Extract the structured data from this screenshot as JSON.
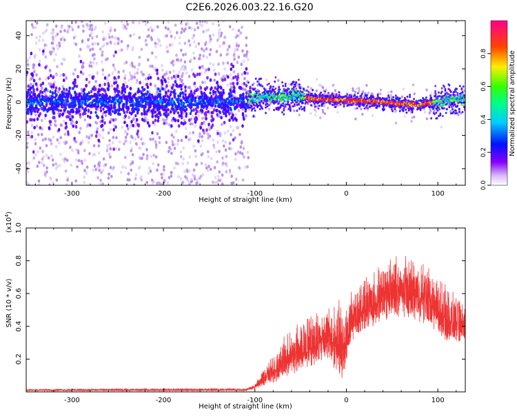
{
  "title": "C2E6.2026.003.22.16.G20",
  "chart_data": [
    {
      "type": "heatmap",
      "title": "C2E6.2026.003.22.16.G20",
      "xlabel": "Height of straight line (km)",
      "ylabel": "Frequency (Hz)",
      "xlim": [
        -350,
        130
      ],
      "ylim": [
        -50,
        49
      ],
      "xticks": [
        "-300",
        "-200",
        "-100",
        "0",
        "100"
      ],
      "yticks": [
        "-40",
        "-20",
        "0",
        "20",
        "40"
      ],
      "colorbar": {
        "label": "Normalized spectral amplitude",
        "range": [
          0,
          1
        ],
        "ticks": [
          "0.0",
          "0.2",
          "0.4",
          "0.6",
          "0.8"
        ]
      },
      "ridge_center_hz": [
        {
          "x": -110,
          "y": 2.5
        },
        {
          "x": -90,
          "y": 3
        },
        {
          "x": -70,
          "y": 3
        },
        {
          "x": -55,
          "y": 4
        },
        {
          "x": -40,
          "y": 2
        },
        {
          "x": -20,
          "y": 1.5
        },
        {
          "x": 0,
          "y": 1
        },
        {
          "x": 20,
          "y": 0.5
        },
        {
          "x": 40,
          "y": 0
        },
        {
          "x": 60,
          "y": -1
        },
        {
          "x": 80,
          "y": -1.5
        },
        {
          "x": 100,
          "y": 0
        },
        {
          "x": 115,
          "y": 2
        },
        {
          "x": 130,
          "y": 1
        }
      ],
      "noise_region_x": [
        -350,
        -107
      ]
    },
    {
      "type": "line",
      "xlabel": "Height of straight line (km)",
      "ylabel": "SNR (10 * v/v)",
      "scale_label": "(x10",
      "scale_exponent": "4",
      "scale_close": ")",
      "xlim": [
        -350,
        130
      ],
      "ylim": [
        0,
        1.0
      ],
      "xticks": [
        "-300",
        "-200",
        "-100",
        "0",
        "100"
      ],
      "yticks": [
        "0.2",
        "0.4",
        "0.6",
        "0.8",
        "1.0"
      ],
      "series": [
        {
          "name": "SNR",
          "color": "#ee3333",
          "envelope": [
            {
              "x": -350,
              "lo": 0.005,
              "hi": 0.02
            },
            {
              "x": -110,
              "lo": 0.005,
              "hi": 0.025
            },
            {
              "x": -100,
              "lo": 0.02,
              "hi": 0.05
            },
            {
              "x": -80,
              "lo": 0.05,
              "hi": 0.25
            },
            {
              "x": -60,
              "lo": 0.1,
              "hi": 0.4
            },
            {
              "x": -40,
              "lo": 0.15,
              "hi": 0.5
            },
            {
              "x": -20,
              "lo": 0.2,
              "hi": 0.55
            },
            {
              "x": -5,
              "lo": 0.05,
              "hi": 0.6
            },
            {
              "x": 10,
              "lo": 0.35,
              "hi": 0.65
            },
            {
              "x": 30,
              "lo": 0.4,
              "hi": 0.75
            },
            {
              "x": 50,
              "lo": 0.45,
              "hi": 0.85
            },
            {
              "x": 70,
              "lo": 0.45,
              "hi": 0.85
            },
            {
              "x": 90,
              "lo": 0.4,
              "hi": 0.8
            },
            {
              "x": 110,
              "lo": 0.3,
              "hi": 0.65
            },
            {
              "x": 130,
              "lo": 0.3,
              "hi": 0.55
            }
          ]
        }
      ]
    }
  ],
  "colors": {
    "line": "#ee3333",
    "axis": "#000000",
    "background": "#ffffff"
  }
}
